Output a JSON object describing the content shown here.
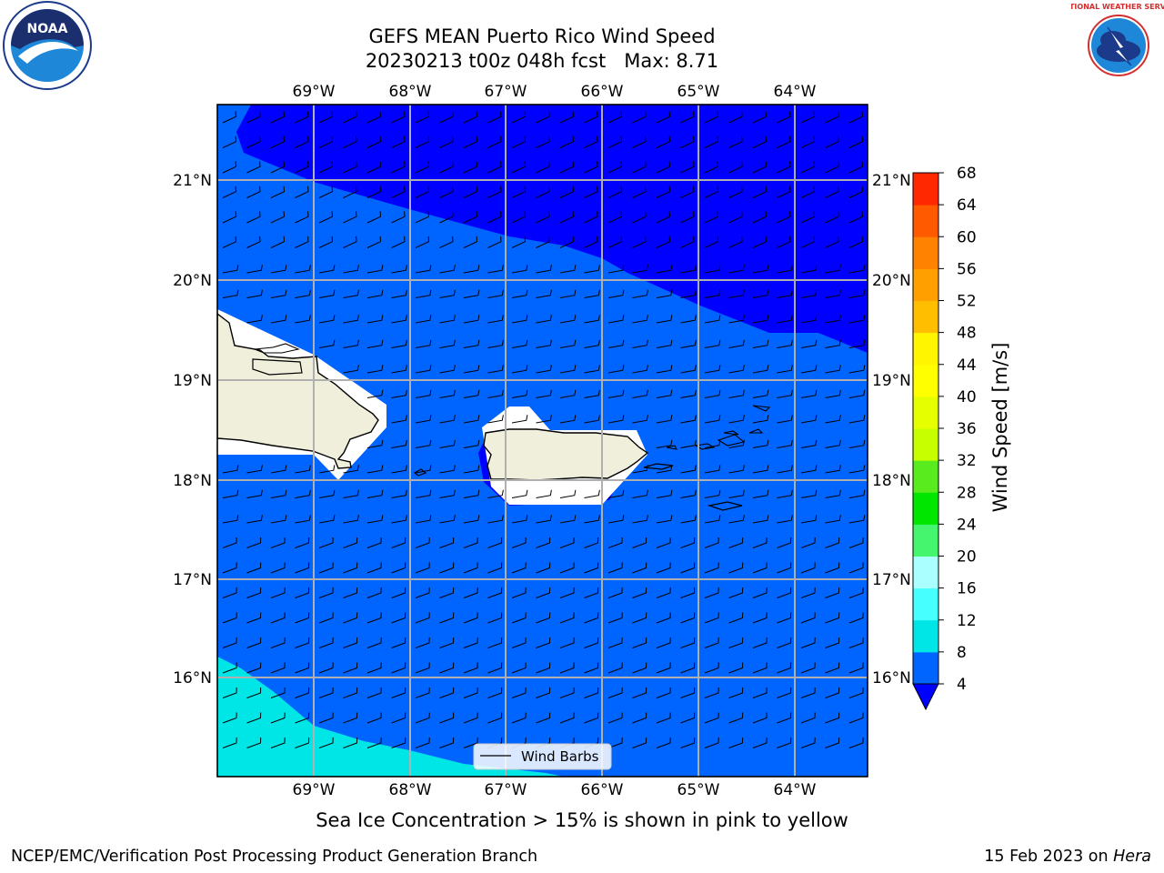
{
  "header": {
    "title_line1": "GEFS MEAN Puerto Rico Wind Speed",
    "title_line2": "20230213 t00z 048h fcst   Max: 8.71"
  },
  "logos": {
    "left_text": "NOAA",
    "right_text": "NATIONAL WEATHER SERVICE"
  },
  "map": {
    "lon_ticks": [
      "69°W",
      "68°W",
      "67°W",
      "66°W",
      "65°W",
      "64°W"
    ],
    "lat_ticks": [
      "21°N",
      "20°N",
      "19°N",
      "18°N",
      "17°N",
      "16°N"
    ],
    "legend_label": "Wind Barbs"
  },
  "colorbar": {
    "label": "Wind Speed [m/s]",
    "ticks": [
      "68",
      "64",
      "60",
      "56",
      "52",
      "48",
      "44",
      "40",
      "36",
      "32",
      "28",
      "24",
      "20",
      "16",
      "12",
      "8",
      "4"
    ],
    "levels": [
      {
        "value": "4-8",
        "color": "#0064ff"
      },
      {
        "value": "8-12",
        "color": "#00e6e6"
      },
      {
        "value": "12-16",
        "color": "#46ffff"
      },
      {
        "value": "16-20",
        "color": "#aaffff"
      },
      {
        "value": "20-24",
        "color": "#46f56e"
      },
      {
        "value": "24-28",
        "color": "#00e600"
      },
      {
        "value": "28-32",
        "color": "#5aeb1e"
      },
      {
        "value": "32-36",
        "color": "#c8ff00"
      },
      {
        "value": "36-40",
        "color": "#e6ff00"
      },
      {
        "value": "40-44",
        "color": "#ffff00"
      },
      {
        "value": "44-48",
        "color": "#fff500"
      },
      {
        "value": "48-52",
        "color": "#ffbe00"
      },
      {
        "value": "52-56",
        "color": "#ffa000"
      },
      {
        "value": "56-60",
        "color": "#ff8200"
      },
      {
        "value": "60-64",
        "color": "#ff5a00"
      },
      {
        "value": "64-68",
        "color": "#ff2800"
      }
    ],
    "under_color": "#0000ff"
  },
  "caption": "Sea Ice Concentration > 15% is shown in pink to yellow",
  "footer": {
    "left": "NCEP/EMC/Verification Post Processing Product Generation Branch",
    "right_prefix": "15 Feb 2023 on ",
    "right_machine": "Hera"
  }
}
